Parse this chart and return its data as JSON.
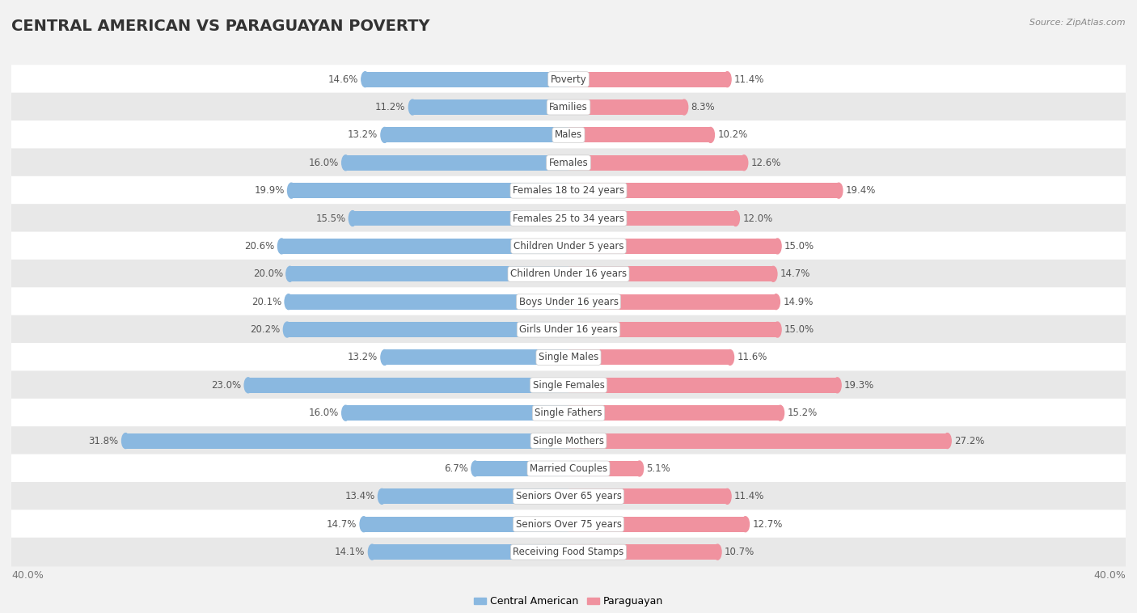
{
  "title": "CENTRAL AMERICAN VS PARAGUAYAN POVERTY",
  "source": "Source: ZipAtlas.com",
  "categories": [
    "Poverty",
    "Families",
    "Males",
    "Females",
    "Females 18 to 24 years",
    "Females 25 to 34 years",
    "Children Under 5 years",
    "Children Under 16 years",
    "Boys Under 16 years",
    "Girls Under 16 years",
    "Single Males",
    "Single Females",
    "Single Fathers",
    "Single Mothers",
    "Married Couples",
    "Seniors Over 65 years",
    "Seniors Over 75 years",
    "Receiving Food Stamps"
  ],
  "central_american": [
    14.6,
    11.2,
    13.2,
    16.0,
    19.9,
    15.5,
    20.6,
    20.0,
    20.1,
    20.2,
    13.2,
    23.0,
    16.0,
    31.8,
    6.7,
    13.4,
    14.7,
    14.1
  ],
  "paraguayan": [
    11.4,
    8.3,
    10.2,
    12.6,
    19.4,
    12.0,
    15.0,
    14.7,
    14.9,
    15.0,
    11.6,
    19.3,
    15.2,
    27.2,
    5.1,
    11.4,
    12.7,
    10.7
  ],
  "central_american_color": "#8ab8e0",
  "paraguayan_color": "#f0929f",
  "background_color": "#f2f2f2",
  "row_odd_color": "#ffffff",
  "row_even_color": "#e8e8e8",
  "axis_limit": 40.0,
  "legend_labels": [
    "Central American",
    "Paraguayan"
  ],
  "title_fontsize": 14,
  "label_fontsize": 8.5,
  "value_fontsize": 8.5,
  "bar_height": 0.55
}
